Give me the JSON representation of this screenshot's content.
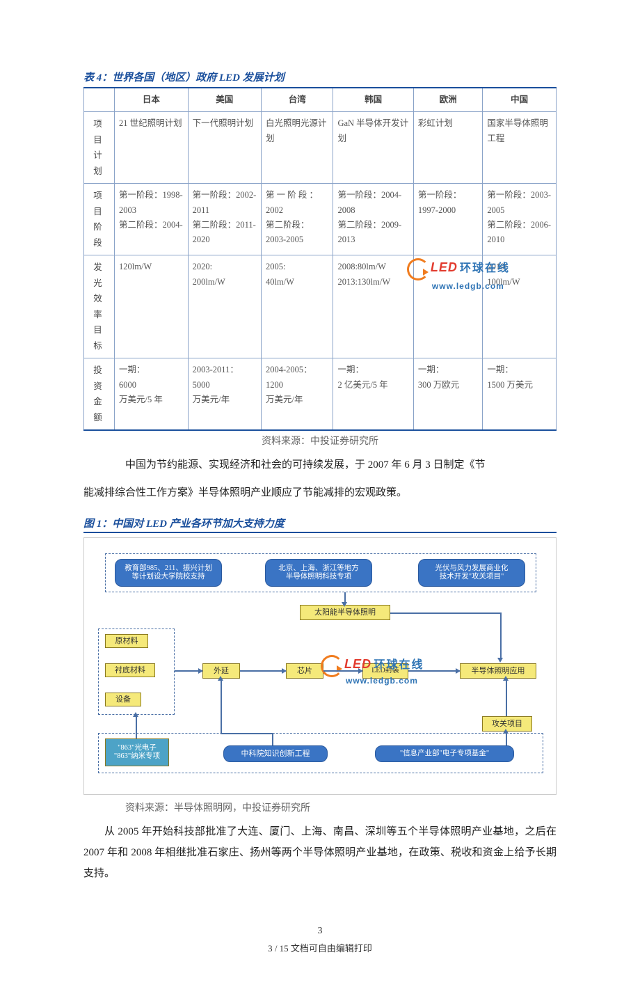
{
  "table4": {
    "title": "表 4：世界各国（地区）政府 LED 发展计划",
    "countries": [
      "日本",
      "美国",
      "台湾",
      "韩国",
      "欧洲",
      "中国"
    ],
    "rows": [
      {
        "label": "项目计划",
        "cells": [
          "21 世纪照明计划",
          "下一代照明计划",
          "白光照明光源计划",
          "GaN 半导体开发计划",
          "彩虹计划",
          "国家半导体照明工程"
        ]
      },
      {
        "label": "项目阶段",
        "cells": [
          "第一阶段：1998-2003\n第二阶段：2004-",
          "第一阶段：2002-2011\n第二阶段：2011-2020",
          "第 一 阶 段 ：2002\n第二阶段：2003-2005",
          "第一阶段：2004-2008\n第二阶段：2009-2013",
          "第一阶段：1997-2000",
          "第一阶段：2003-2005\n第二阶段：2006-2010"
        ]
      },
      {
        "label": "发光效率目标",
        "cells": [
          "120lm/W",
          "2020:\n200lm/W",
          "2005:\n40lm/W",
          "2008:80lm/W\n2013:130lm/W",
          "",
          "2010:\n100lm/W"
        ]
      },
      {
        "label": "投资金额",
        "cells": [
          "一期：\n6000\n万美元/5 年",
          "2003-2011：\n5000\n万美元/年",
          "2004-2005：\n1200\n万美元/年",
          "一期：\n2 亿美元/5 年",
          "一期：\n300 万欧元",
          "一期：\n1500 万美元"
        ]
      }
    ],
    "source": "资料来源：中投证券研究所",
    "colors": {
      "title": "#1a4f9c",
      "border": "#1a4f9c",
      "cell_border": "#8aa3c8",
      "text": "#555555"
    }
  },
  "para1_a": "中国为节约能源、实现经济和社会的可持续发展，于 2007 年 6 月 3 日制定《节",
  "para1_b": "能减排综合性工作方案》半导体照明产业顺应了节能减排的宏观政策。",
  "figure1": {
    "title": "图 1：中国对 LED 产业各环节加大支持力度",
    "source": "资料来源：半导体照明网，中投证券研究所",
    "nodes": {
      "top_left": "教育部985、211、振兴计划\n等计划设大学院校支持",
      "top_mid": "北京、上海、浙江等地方\n半导体照明科技专项",
      "top_right": "光伏与风力发展商业化\n技术开发\"攻关项目\"",
      "solar": "太阳能半导体照明",
      "raw": "原材料",
      "sub_mat": "衬底材料",
      "equip": "设备",
      "epi": "外延",
      "chip": "芯片",
      "pkg": "LED封装",
      "app": "半导体照明应用",
      "bottom_left": "\"863\"光电子\n\"863\"纳米专项",
      "cas": "中科院知识创新工程",
      "miit": "\"信息产业部\"电子专项基金\"",
      "attack": "攻关项目"
    },
    "node_colors": {
      "blue_bg": "#3a74c4",
      "blue_text": "#ffffff",
      "yellow_bg": "#f5e97a",
      "yellow_border": "#8a7a20",
      "dash_border": "#4a6fa5"
    }
  },
  "watermark": {
    "led": "LED",
    "cn": "环球在线",
    "url": "www.ledgb.com",
    "logo_color": "#f07c1f",
    "led_color": "#e23b2e",
    "text_color": "#2f74b5"
  },
  "para2": "从 2005 年开始科技部批准了大连、厦门、上海、南昌、深圳等五个半导体照明产业基地，之后在 2007 年和 2008 年相继批准石家庄、扬州等两个半导体照明产业基地，在政策、税收和资金上给予长期支持。",
  "page_number": "3",
  "page_footer": "3 / 15 文档可自由编辑打印"
}
